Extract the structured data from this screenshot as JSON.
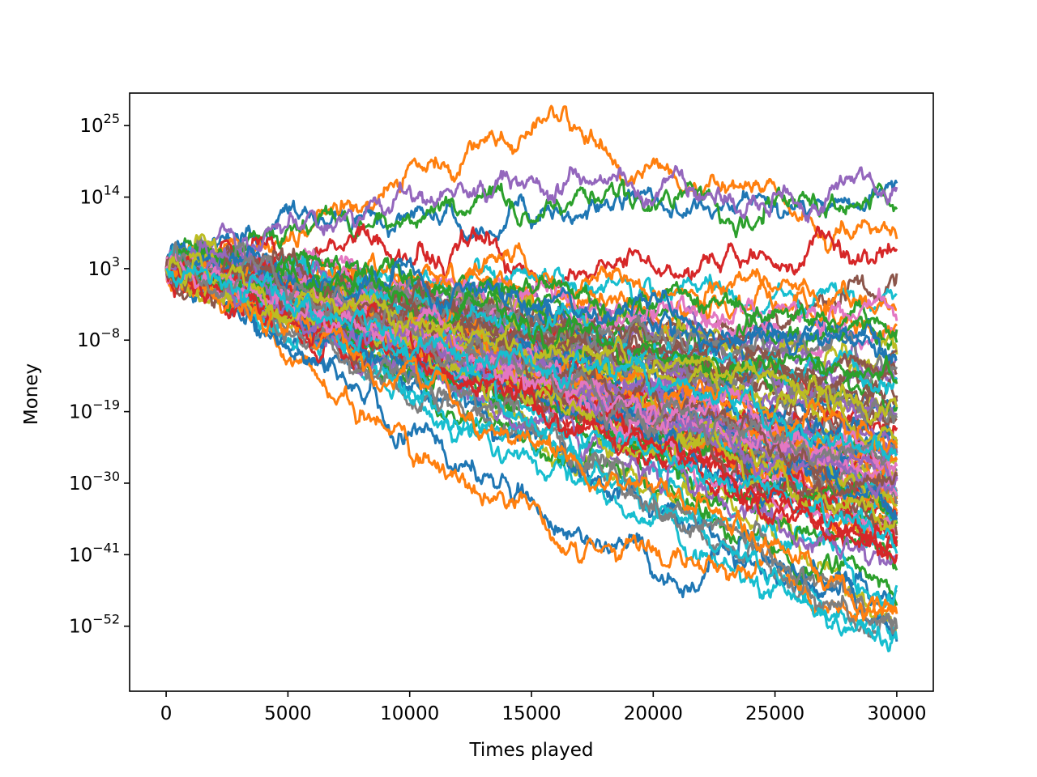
{
  "chart_data": {
    "type": "line",
    "title": "",
    "xlabel": "Times played",
    "ylabel": "Money",
    "x_scale": "linear",
    "y_scale": "log",
    "xlim": [
      -1500,
      31500
    ],
    "ylim_exponent": [
      -62,
      30
    ],
    "x_ticks": [
      {
        "value": 0,
        "label": "0"
      },
      {
        "value": 5000,
        "label": "5000"
      },
      {
        "value": 10000,
        "label": "10000"
      },
      {
        "value": 15000,
        "label": "15000"
      },
      {
        "value": 20000,
        "label": "20000"
      },
      {
        "value": 25000,
        "label": "25000"
      },
      {
        "value": 30000,
        "label": "30000"
      }
    ],
    "y_ticks": [
      {
        "exponent": 25,
        "base": "10",
        "exp_label": "25"
      },
      {
        "exponent": 14,
        "base": "10",
        "exp_label": "14"
      },
      {
        "exponent": 3,
        "base": "10",
        "exp_label": "3"
      },
      {
        "exponent": -8,
        "base": "10",
        "exp_label": "−8"
      },
      {
        "exponent": -19,
        "base": "10",
        "exp_label": "−19"
      },
      {
        "exponent": -30,
        "base": "10",
        "exp_label": "−30"
      },
      {
        "exponent": -41,
        "base": "10",
        "exp_label": "−41"
      },
      {
        "exponent": -52,
        "base": "10",
        "exp_label": "−52"
      }
    ],
    "grid": false,
    "legend": "none",
    "colors": [
      "#1f77b4",
      "#ff7f0e",
      "#2ca02c",
      "#d62728",
      "#9467bd",
      "#8c564b",
      "#e377c2",
      "#7f7f7f",
      "#bcbd22",
      "#17becf"
    ],
    "start": {
      "x": 0,
      "y_exponent": 3
    },
    "x_end": 30000,
    "num_series": 100,
    "series_shape_note": "100 random-walk trajectories on log scale; y values given as log10 exponents at x = 0, 3750, 7500, 11250, 15000, 18750, 22500, 26250, 30000",
    "series_x": [
      0,
      3750,
      7500,
      11250,
      15000,
      18750,
      22500,
      26250,
      30000
    ],
    "series": [
      {
        "y_exponent": [
          3,
          10,
          9,
          9,
          13,
          14,
          12,
          14,
          12
        ]
      },
      {
        "y_exponent": [
          3,
          10,
          14,
          22,
          26,
          16,
          15,
          12,
          3
        ]
      },
      {
        "y_exponent": [
          3,
          8,
          10,
          12,
          14,
          13,
          13,
          16,
          10
        ]
      },
      {
        "y_exponent": [
          3,
          7,
          5,
          4,
          3,
          5,
          4,
          3,
          5
        ]
      },
      {
        "y_exponent": [
          3,
          6,
          14,
          17,
          15,
          14,
          12,
          15,
          14
        ]
      },
      {
        "y_exponent": [
          3,
          4,
          0,
          -5,
          -8,
          -9,
          -4,
          0,
          -2
        ]
      },
      {
        "y_exponent": [
          3,
          5,
          2,
          -3,
          -2,
          -4,
          -6,
          -8,
          -10
        ]
      },
      {
        "y_exponent": [
          3,
          2,
          -4,
          -12,
          -16,
          -18,
          -22,
          -24,
          -25
        ]
      },
      {
        "y_exponent": [
          3,
          0,
          -8,
          -16,
          -24,
          -30,
          -34,
          -40,
          -52
        ]
      },
      {
        "y_exponent": [
          3,
          -2,
          -14,
          -24,
          -28,
          -34,
          -44,
          -44,
          -56
        ]
      },
      {
        "y_exponent": [
          3,
          -6,
          -20,
          -28,
          -36,
          -44,
          -44,
          -46,
          -47
        ]
      },
      {
        "y_exponent": [
          3,
          -8,
          -18,
          -30,
          -38,
          -40,
          -44,
          -48,
          -52
        ]
      }
    ]
  }
}
